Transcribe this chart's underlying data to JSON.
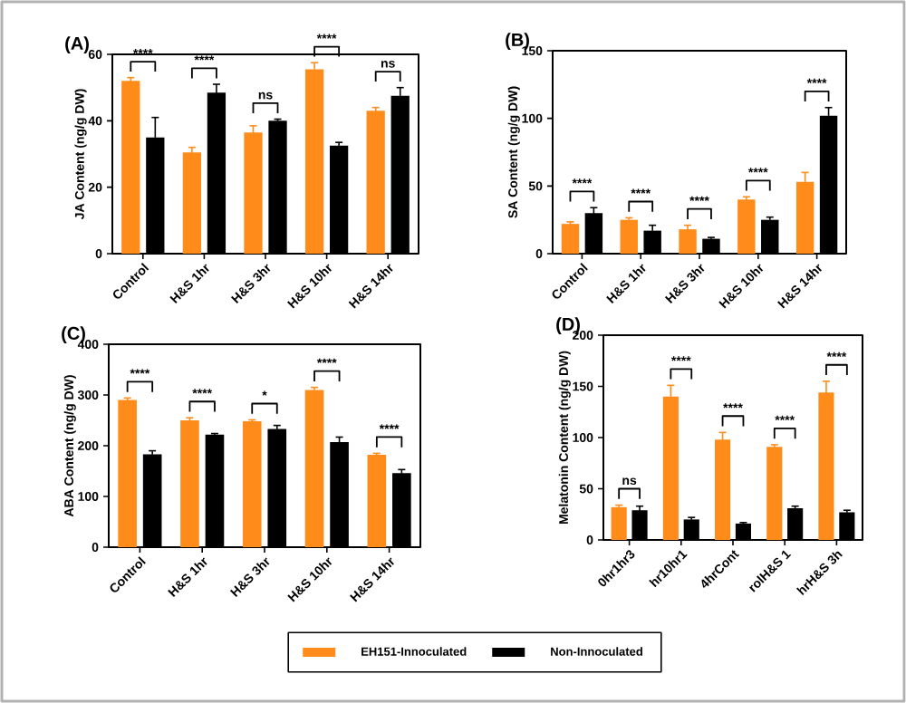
{
  "chart_data": [
    {
      "type": "bar",
      "title": "(A)",
      "ylabel": "JA Content (ng/g DW)",
      "categories": [
        "Control",
        "H&S 1hr",
        "H&S 3hr",
        "H&S 10hr",
        "H&S 14hr"
      ],
      "series": [
        {
          "color": "#ff8c1a",
          "values": [
            52,
            30.5,
            36.5,
            55.5,
            43
          ],
          "errors": [
            1,
            1.5,
            2,
            2,
            1
          ]
        },
        {
          "color": "#000000",
          "values": [
            35,
            48.5,
            40,
            32.5,
            47.5
          ],
          "errors": [
            6,
            2.5,
            0.5,
            1,
            2.5
          ]
        }
      ],
      "ylim": [
        0,
        60
      ],
      "yticks": [
        0,
        20,
        40,
        60
      ],
      "legend": false,
      "grid": false,
      "annotations": [
        "****",
        "****",
        "ns",
        "****",
        "ns"
      ]
    },
    {
      "type": "bar",
      "title": "(B)",
      "ylabel": "SA Content (ng/g DW)",
      "categories": [
        "Control",
        "H&S 1hr",
        "H&S 3hr",
        "H&S 10hr",
        "H&S 14hr"
      ],
      "series": [
        {
          "color": "#ff8c1a",
          "values": [
            22,
            25,
            18,
            40,
            53
          ],
          "errors": [
            1.5,
            1.5,
            3,
            2,
            7
          ]
        },
        {
          "color": "#000000",
          "values": [
            30,
            17,
            11,
            25,
            102
          ],
          "errors": [
            4,
            4,
            1,
            2,
            6
          ]
        }
      ],
      "ylim": [
        0,
        150
      ],
      "yticks": [
        0,
        50,
        100,
        150
      ],
      "legend": false,
      "grid": false,
      "annotations": [
        "****",
        "****",
        "****",
        "****",
        "****"
      ]
    },
    {
      "type": "bar",
      "title": "(C)",
      "ylabel": "ABA Content (ng/g DW)",
      "categories": [
        "Control",
        "H&S 1hr",
        "H&S 3hr",
        "H&S 10hr",
        "H&S 14hr"
      ],
      "series": [
        {
          "color": "#ff8c1a",
          "values": [
            290,
            250,
            248,
            310,
            182
          ],
          "errors": [
            4,
            5,
            3,
            5,
            3
          ]
        },
        {
          "color": "#000000",
          "values": [
            183,
            222,
            233,
            207,
            146
          ],
          "errors": [
            7,
            2,
            7,
            10,
            7
          ]
        }
      ],
      "ylim": [
        0,
        400
      ],
      "yticks": [
        0,
        100,
        200,
        300,
        400
      ],
      "legend": false,
      "grid": false,
      "annotations": [
        "****",
        "****",
        "*",
        "****",
        "****"
      ]
    },
    {
      "type": "bar",
      "title": "(D)",
      "ylabel": "Melatonin Content (ng/g DW)",
      "categories": [
        "0hr1hr3",
        "hr10hr1",
        "4hrCont",
        "rolH&S 1",
        "hrH&S 3h"
      ],
      "series": [
        {
          "name": "EH151-Innoculated",
          "color": "#ff8c1a",
          "values": [
            32,
            140,
            98,
            91,
            144
          ],
          "errors": [
            2,
            11,
            7,
            2,
            11
          ]
        },
        {
          "name": "Non-Innoculated",
          "color": "#000000",
          "values": [
            29,
            20,
            16,
            31,
            27
          ],
          "errors": [
            4,
            2,
            1,
            2,
            2
          ]
        }
      ],
      "ylim": [
        0,
        200
      ],
      "yticks": [
        0,
        50,
        100,
        150,
        200
      ],
      "legend": "bottom",
      "grid": false,
      "annotations": [
        "ns",
        "****",
        "****",
        "****",
        "****"
      ]
    }
  ]
}
